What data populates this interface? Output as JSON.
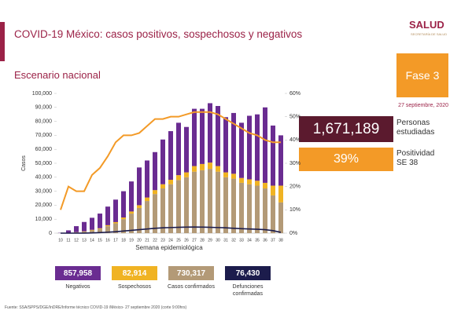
{
  "header": {
    "title": "COVID-19 México: casos positivos, sospechosos y negativos",
    "subtitle": "Escenario nacional",
    "logo": "SALUD",
    "logo_sub": "SECRETARÍA DE SALUD"
  },
  "phase": "Fase 3",
  "date": "27 septiembre, 2020",
  "stats": [
    {
      "value": "1,671,189",
      "label": "Personas estudiadas"
    },
    {
      "value": "39%",
      "label": "Positividad SE 38"
    }
  ],
  "source": "Fuente: SSA/SPPS/DGE/InDRE/Informe técnico COVID-19 /México- 27 septiembre 2020 (corte 9:00hrs)",
  "chart_data": {
    "type": "bar",
    "xlabel": "Semana epidemiológica",
    "ylabel": "Casos",
    "categories": [
      "10",
      "11",
      "12",
      "13",
      "14",
      "15",
      "16",
      "17",
      "18",
      "19",
      "20",
      "21",
      "22",
      "23",
      "24",
      "25",
      "26",
      "27",
      "28",
      "29",
      "30",
      "31",
      "32",
      "33",
      "34",
      "35",
      "36",
      "37",
      "38"
    ],
    "stacked": true,
    "series": [
      {
        "name": "Casos confirmados",
        "total": "730,317",
        "color": "#b39a77",
        "values": [
          0,
          100,
          500,
          1000,
          2000,
          3000,
          5000,
          7000,
          10000,
          14000,
          18000,
          23000,
          28000,
          32000,
          35000,
          38000,
          40000,
          44000,
          45000,
          46000,
          44000,
          40000,
          39000,
          36000,
          35000,
          34000,
          32000,
          27000,
          22000
        ]
      },
      {
        "name": "Sospechosos",
        "total": "82,914",
        "color": "#f0b323",
        "values": [
          0,
          100,
          200,
          300,
          400,
          500,
          700,
          900,
          1200,
          1500,
          2000,
          2500,
          2800,
          3000,
          3200,
          3500,
          3500,
          4000,
          4500,
          4500,
          4000,
          3500,
          3500,
          3500,
          3500,
          3500,
          4000,
          7000,
          12000
        ]
      },
      {
        "name": "Negativos",
        "total": "857,958",
        "color": "#6a2c91",
        "values": [
          200,
          1800,
          4300,
          6700,
          8600,
          10500,
          13300,
          16100,
          18800,
          21500,
          27000,
          26500,
          27200,
          32000,
          34800,
          37500,
          32500,
          41000,
          39500,
          42500,
          43000,
          39500,
          43500,
          39500,
          45500,
          47500,
          54000,
          43000,
          36000
        ]
      },
      {
        "name": "Defunciones confirmadas",
        "total": "76,430",
        "type": "line",
        "color": "#1c1c4c",
        "values": [
          0,
          0,
          0,
          50,
          150,
          400,
          700,
          1000,
          1500,
          2000,
          2500,
          3000,
          3500,
          3800,
          4000,
          4200,
          4300,
          4400,
          4300,
          4200,
          4000,
          3800,
          3500,
          3200,
          3000,
          2800,
          2500,
          1800,
          600
        ]
      },
      {
        "type": "line",
        "axis": "y2",
        "color": "#f39a27",
        "values": [
          10,
          20,
          18,
          18,
          25,
          28,
          33,
          39,
          42,
          42,
          43,
          46,
          49,
          49,
          50,
          50,
          51,
          52,
          52,
          52,
          51,
          49,
          47,
          45,
          43,
          42,
          40,
          39,
          39
        ]
      }
    ],
    "ylim": [
      0,
      100000
    ],
    "yticks": [
      0,
      {
        "value": 10000,
        "label": "10,000"
      },
      {
        "value": 20000,
        "label": "20,000"
      },
      {
        "value": 30000,
        "label": "30,000"
      },
      {
        "value": 40000,
        "label": "40,000"
      },
      {
        "value": 50000,
        "label": "50,000"
      },
      {
        "value": 60000,
        "label": "60,000"
      },
      {
        "value": 70000,
        "label": "70,000"
      },
      {
        "value": 80000,
        "label": "80,000"
      },
      {
        "value": 90000,
        "label": "90,000"
      },
      {
        "value": 100000,
        "label": "100,000"
      }
    ],
    "y2lim": [
      0,
      60
    ],
    "y2ticks": [
      {
        "value": 0,
        "label": "0%"
      },
      {
        "value": 10,
        "label": "10%"
      },
      {
        "value": 20,
        "label": "20%"
      },
      {
        "value": 30,
        "label": "30%"
      },
      {
        "value": 40,
        "label": "40%"
      },
      {
        "value": 50,
        "label": "50%"
      },
      {
        "value": 60,
        "label": "60%"
      }
    ]
  }
}
